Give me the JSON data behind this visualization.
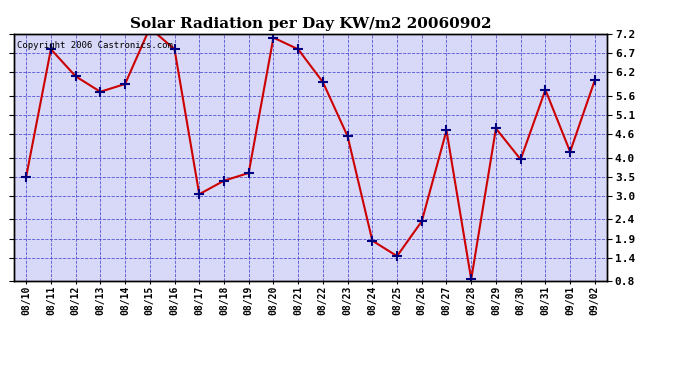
{
  "title": "Solar Radiation per Day KW/m2 20060902",
  "copyright_text": "Copyright 2006 Castronics.com",
  "dates": [
    "08/10",
    "08/11",
    "08/12",
    "08/13",
    "08/14",
    "08/15",
    "08/16",
    "08/17",
    "08/18",
    "08/19",
    "08/20",
    "08/21",
    "08/22",
    "08/23",
    "08/24",
    "08/25",
    "08/26",
    "08/27",
    "08/28",
    "08/29",
    "08/30",
    "08/31",
    "09/01",
    "09/02"
  ],
  "values": [
    3.5,
    6.8,
    6.1,
    5.7,
    5.9,
    7.35,
    6.8,
    3.05,
    3.4,
    3.6,
    7.1,
    6.8,
    5.95,
    4.55,
    1.85,
    1.45,
    2.35,
    4.7,
    0.85,
    4.75,
    3.95,
    5.75,
    4.15,
    6.0
  ],
  "line_color": "#cc0000",
  "marker_color": "#000080",
  "bg_color": "#ffffff",
  "plot_bg_color": "#d8d8f8",
  "grid_color": "#3333cc",
  "title_color": "#000000",
  "ylim": [
    0.8,
    7.2
  ],
  "yticks": [
    0.8,
    1.4,
    1.9,
    2.4,
    3.0,
    3.5,
    4.0,
    4.6,
    5.1,
    5.6,
    6.2,
    6.7,
    7.2
  ]
}
